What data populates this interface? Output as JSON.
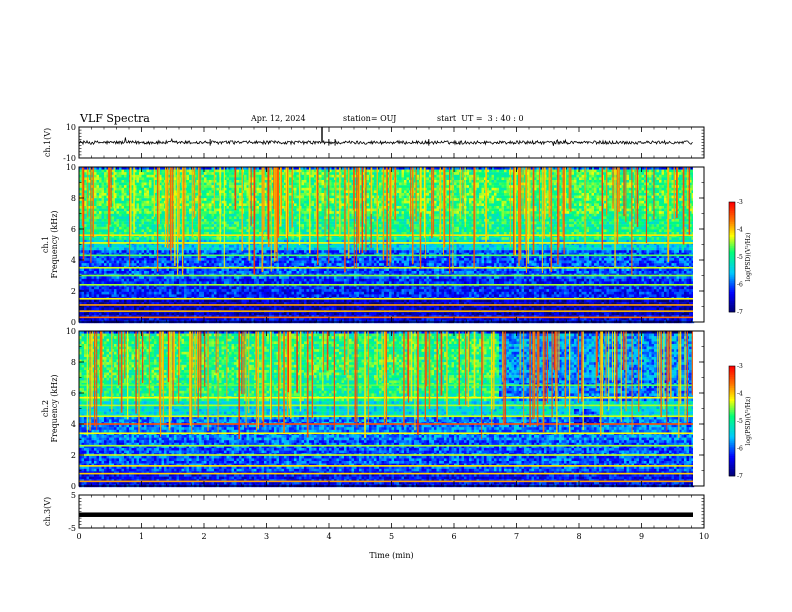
{
  "header": {
    "title": "VLF Spectra",
    "date": "Apr. 12, 2024",
    "station": "station= OUJ",
    "start": "start  UT =  3 : 40 : 0"
  },
  "chart_data": [
    {
      "type": "line",
      "name": "ch1-waveform",
      "ylabel": "ch.1(V)",
      "ylim": [
        -10,
        10
      ],
      "y_tick_labels": [
        "10",
        "-10"
      ],
      "baseline": 0,
      "color": "#000000"
    },
    {
      "type": "heatmap",
      "name": "ch1-spectrogram",
      "ylabel": "ch.1\nFrequency (kHz)",
      "ylim": [
        0,
        10
      ],
      "y_tick_labels": [
        "0",
        "2",
        "4",
        "6",
        "8",
        "10"
      ],
      "colorbar": {
        "label": "log(PSD)(V²/Hz)",
        "range": [
          -7,
          -3
        ],
        "tick_labels": [
          "-3",
          "-4",
          "-5",
          "-6",
          "-7"
        ]
      },
      "bands": [
        {
          "freq": [
            0,
            0.6
          ],
          "level": -6.4
        },
        {
          "freq": [
            0.6,
            1.6
          ],
          "level": -6.6
        },
        {
          "freq": [
            1.6,
            2.8
          ],
          "level": -6.2
        },
        {
          "freq": [
            2.8,
            4.8
          ],
          "level": -6.0
        },
        {
          "freq": [
            4.8,
            5.4
          ],
          "level": -5.4
        },
        {
          "freq": [
            5.4,
            7.0
          ],
          "level": -4.9
        },
        {
          "freq": [
            7.0,
            10.0
          ],
          "level": -4.7
        }
      ]
    },
    {
      "type": "heatmap",
      "name": "ch2-spectrogram",
      "ylabel": "ch.2\nFrequency (kHz)",
      "ylim": [
        0,
        10
      ],
      "y_tick_labels": [
        "0",
        "2",
        "4",
        "6",
        "8",
        "10"
      ],
      "colorbar": {
        "label": "log(PSD)(V²/Hz)",
        "range": [
          -7,
          -3
        ],
        "tick_labels": [
          "-3",
          "-4",
          "-5",
          "-6",
          "-7"
        ]
      },
      "bands": [
        {
          "freq": [
            0,
            1.0
          ],
          "level": -6.3
        },
        {
          "freq": [
            1.0,
            3.0
          ],
          "level": -6.0
        },
        {
          "freq": [
            3.0,
            4.6
          ],
          "level": -5.8
        },
        {
          "freq": [
            4.6,
            5.6
          ],
          "level": -5.3
        },
        {
          "freq": [
            5.6,
            7.0
          ],
          "level": -4.9
        },
        {
          "freq": [
            7.0,
            10.0
          ],
          "level": -4.8
        }
      ]
    },
    {
      "type": "line",
      "name": "ch3-waveform",
      "ylabel": "ch.3(V)",
      "ylim": [
        -5,
        5
      ],
      "y_tick_labels": [
        "5",
        "-5"
      ],
      "baseline": -0.9,
      "color": "#000000"
    }
  ],
  "x_axis": {
    "label": "Time (min)",
    "range": [
      0,
      10
    ],
    "tick_labels": [
      "0",
      "1",
      "2",
      "3",
      "4",
      "5",
      "6",
      "7",
      "8",
      "9",
      "10"
    ]
  }
}
